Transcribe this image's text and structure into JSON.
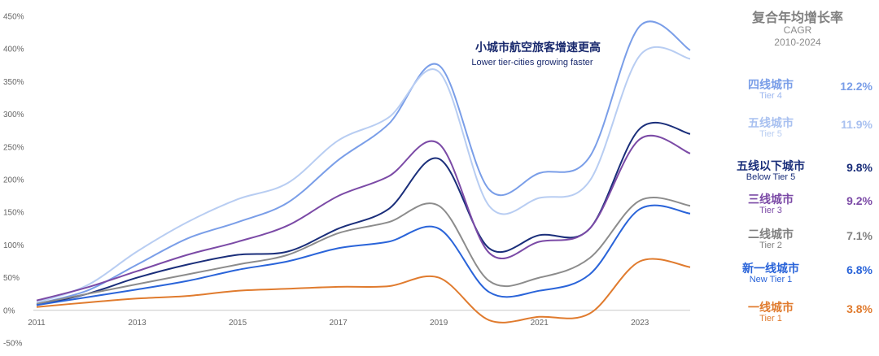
{
  "chart_data": {
    "type": "line",
    "title": "",
    "xlabel": "",
    "ylabel": "",
    "x": [
      2011,
      2012,
      2013,
      2014,
      2015,
      2016,
      2017,
      2018,
      2019,
      2020,
      2021,
      2022,
      2023,
      2024
    ],
    "x_ticks": [
      "2011",
      "2013",
      "2015",
      "2017",
      "2019",
      "2021",
      "2023"
    ],
    "ylim": [
      -50,
      450
    ],
    "y_ticks": [
      "450%",
      "400%",
      "350%",
      "300%",
      "250%",
      "200%",
      "150%",
      "100%",
      "50%",
      "0%",
      "-50%"
    ],
    "grid": false,
    "annotation": {
      "cn": "小城市航空旅客增速更高",
      "en": "Lower tier-cities growing faster"
    },
    "series": [
      {
        "name": "四线城市",
        "color": "#7a9ee8",
        "values": [
          10,
          30,
          70,
          110,
          135,
          165,
          230,
          285,
          375,
          185,
          210,
          235,
          435,
          398
        ]
      },
      {
        "name": "五线城市",
        "color": "#b8cdf2",
        "values": [
          12,
          38,
          90,
          135,
          170,
          195,
          260,
          295,
          365,
          160,
          172,
          198,
          390,
          385
        ]
      },
      {
        "name": "五线以下城市",
        "color": "#1a2e7a",
        "values": [
          8,
          25,
          50,
          70,
          85,
          90,
          125,
          155,
          232,
          95,
          115,
          125,
          278,
          270
        ]
      },
      {
        "name": "三线城市",
        "color": "#7b4aa6",
        "values": [
          15,
          35,
          60,
          85,
          105,
          130,
          175,
          205,
          255,
          88,
          105,
          125,
          262,
          240
        ]
      },
      {
        "name": "二线城市",
        "color": "#8c8c8c",
        "values": [
          10,
          25,
          40,
          55,
          70,
          85,
          118,
          135,
          160,
          45,
          50,
          80,
          168,
          160
        ]
      },
      {
        "name": "新一线城市",
        "color": "#2a64d9",
        "values": [
          8,
          20,
          32,
          45,
          62,
          75,
          95,
          105,
          125,
          28,
          30,
          55,
          155,
          148
        ]
      },
      {
        "name": "一线城市",
        "color": "#e07b2e",
        "values": [
          5,
          12,
          18,
          22,
          30,
          33,
          36,
          37,
          50,
          -15,
          -10,
          -5,
          75,
          66
        ]
      }
    ]
  },
  "cagr_panel": {
    "title": "复合年均增长率",
    "sub1": "CAGR",
    "sub2": "2010-2024",
    "rows": [
      {
        "name": "四线城市",
        "en": "Tier 4",
        "value": "12.2%",
        "color": "#7a9ee8",
        "en_color": "#9bb6ef"
      },
      {
        "name": "五线城市",
        "en": "Tier 5",
        "value": "11.9%",
        "color": "#a9c1f0",
        "en_color": "#b8cdf2"
      },
      {
        "name": "五线以下城市",
        "en": "Below Tier 5",
        "value": "9.8%",
        "color": "#1a2e7a",
        "en_color": "#1a2e7a"
      },
      {
        "name": "三线城市",
        "en": "Tier 3",
        "value": "9.2%",
        "color": "#7b4aa6",
        "en_color": "#7b4aa6"
      },
      {
        "name": "二线城市",
        "en": "Tier 2",
        "value": "7.1%",
        "color": "#808080",
        "en_color": "#808080"
      },
      {
        "name": "新一线城市",
        "en": "New Tier 1",
        "value": "6.8%",
        "color": "#2a64d9",
        "en_color": "#2a64d9"
      },
      {
        "name": "一线城市",
        "en": "Tier 1",
        "value": "3.8%",
        "color": "#e07b2e",
        "en_color": "#e07b2e"
      }
    ]
  }
}
